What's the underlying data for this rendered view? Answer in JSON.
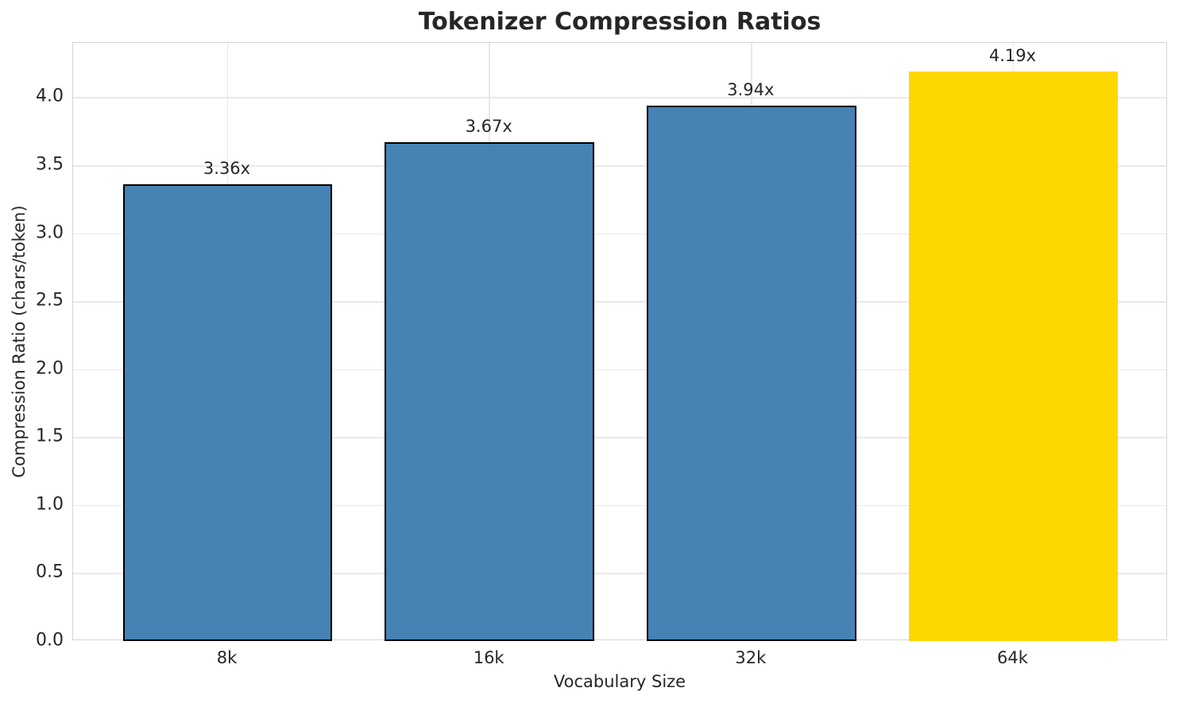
{
  "chart_data": {
    "type": "bar",
    "title": "Tokenizer Compression Ratios",
    "xlabel": "Vocabulary Size",
    "ylabel": "Compression Ratio (chars/token)",
    "categories": [
      "8k",
      "16k",
      "32k",
      "64k"
    ],
    "values": [
      3.36,
      3.67,
      3.94,
      4.19
    ],
    "bar_labels": [
      "3.36x",
      "3.67x",
      "3.94x",
      "4.19x"
    ],
    "ylim": [
      0,
      4.4
    ],
    "ytick_values": [
      0.0,
      0.5,
      1.0,
      1.5,
      2.0,
      2.5,
      3.0,
      3.5,
      4.0
    ],
    "ytick_labels": [
      "0.0",
      "0.5",
      "1.0",
      "1.5",
      "2.0",
      "2.5",
      "3.0",
      "3.5",
      "4.0"
    ],
    "grid": true,
    "legend": false,
    "colors": {
      "bar_default": "#4682B4",
      "bar_highlight": "#FFD700",
      "bar_edge_default": "#000000",
      "bar_edge_highlight": "none",
      "highlight_index": 3,
      "grid": "#e9e9e9",
      "spine": "#d4d4d4",
      "text": "#262626"
    }
  }
}
